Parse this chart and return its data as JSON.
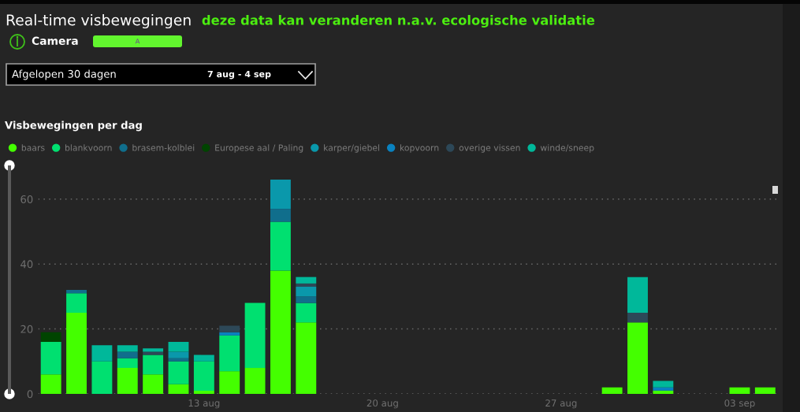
{
  "chart_data": {
    "type": "bar",
    "stacked": true,
    "title": "Real-time visbewegingen",
    "subtitle": "deze data kan veranderen n.a.v. ecologische validatie",
    "annotations": [
      "Camera",
      "A",
      "Afgelopen 30 dagen",
      "7 aug - 4 sep",
      "Visbewegingen per dag"
    ],
    "categories": [
      null,
      null,
      null,
      null,
      null,
      null,
      "13 aug",
      null,
      null,
      null,
      null,
      null,
      null,
      "20 aug",
      null,
      null,
      null,
      null,
      null,
      null,
      "27 aug",
      null,
      null,
      null,
      null,
      null,
      null,
      "03 sep",
      null
    ],
    "series": [
      {
        "name": "baars",
        "color": "#44ff00",
        "values": [
          6,
          25,
          null,
          8,
          6,
          3,
          1,
          7,
          8,
          38,
          22,
          null,
          null,
          null,
          null,
          null,
          null,
          null,
          null,
          null,
          null,
          null,
          2,
          22,
          1,
          null,
          null,
          2,
          2
        ]
      },
      {
        "name": "blankvoorn",
        "color": "#00e070",
        "values": [
          10,
          6,
          10,
          3,
          6,
          7,
          9,
          11,
          20,
          15,
          6,
          null,
          null,
          null,
          null,
          null,
          null,
          null,
          null,
          null,
          null,
          null,
          null,
          null,
          null,
          null,
          null,
          null,
          null
        ]
      },
      {
        "name": "brasem-kolblei",
        "color": "#106e8c",
        "values": [
          null,
          1,
          null,
          2,
          null,
          1,
          null,
          null,
          null,
          4,
          2,
          null,
          null,
          null,
          null,
          null,
          null,
          null,
          null,
          null,
          null,
          null,
          null,
          null,
          null,
          null,
          null,
          null,
          null
        ]
      },
      {
        "name": "Europese aal / Paling",
        "color": "#004400",
        "values": [
          3,
          null,
          null,
          null,
          null,
          null,
          null,
          null,
          null,
          null,
          null,
          null,
          null,
          null,
          null,
          null,
          null,
          null,
          null,
          null,
          null,
          null,
          null,
          null,
          null,
          null,
          null,
          null,
          null
        ]
      },
      {
        "name": "karper/giebel",
        "color": "#0a98ab",
        "values": [
          null,
          null,
          null,
          null,
          null,
          2,
          null,
          null,
          null,
          9,
          3,
          null,
          null,
          null,
          null,
          null,
          null,
          null,
          null,
          null,
          null,
          null,
          null,
          null,
          null,
          null,
          null,
          null,
          null
        ]
      },
      {
        "name": "kopvoorn",
        "color": "#0a82c0",
        "values": [
          null,
          null,
          null,
          null,
          null,
          null,
          null,
          1,
          null,
          null,
          null,
          null,
          null,
          null,
          null,
          null,
          null,
          null,
          null,
          null,
          null,
          null,
          null,
          null,
          1,
          null,
          null,
          null,
          null
        ]
      },
      {
        "name": "overige vissen",
        "color": "#2d4858",
        "values": [
          null,
          null,
          null,
          null,
          1,
          null,
          null,
          2,
          null,
          null,
          1,
          null,
          null,
          null,
          null,
          null,
          null,
          null,
          null,
          null,
          null,
          null,
          null,
          3,
          null,
          null,
          null,
          null,
          null
        ]
      },
      {
        "name": "winde/sneep",
        "color": "#00b89a",
        "values": [
          null,
          null,
          5,
          2,
          1,
          3,
          2,
          null,
          null,
          null,
          2,
          null,
          null,
          null,
          null,
          null,
          null,
          null,
          null,
          null,
          null,
          null,
          null,
          11,
          2,
          null,
          null,
          null,
          null
        ]
      }
    ],
    "ylim": [
      0,
      66
    ],
    "yticks": [
      0,
      20,
      40,
      60
    ],
    "grid": "y",
    "legend": "top left"
  }
}
